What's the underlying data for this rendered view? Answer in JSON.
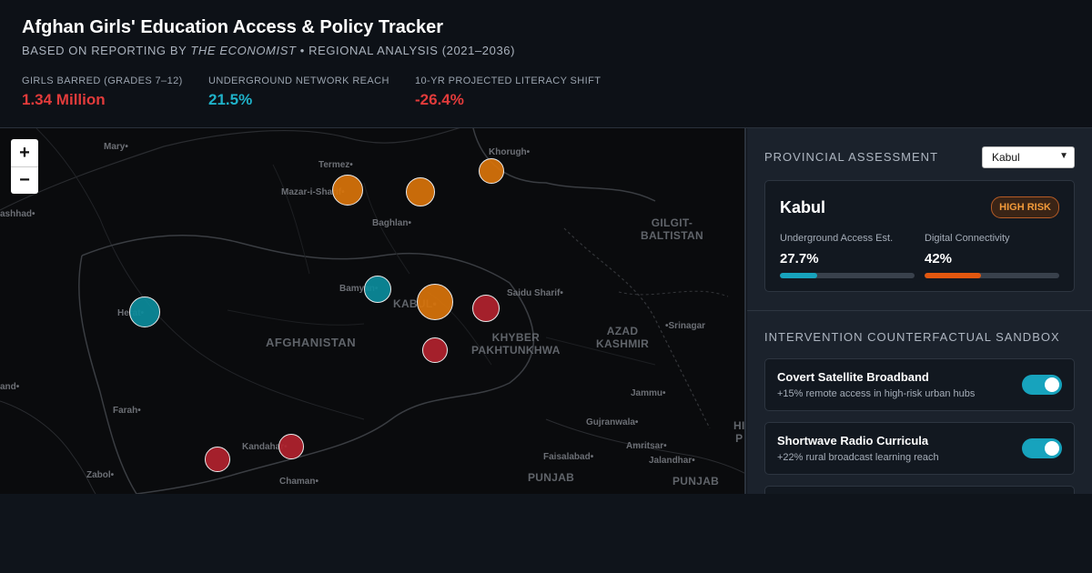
{
  "header": {
    "title": "Afghan Girls' Education Access & Policy Tracker",
    "subtitle_prefix": "BASED ON REPORTING BY ",
    "subtitle_source": "THE ECONOMIST",
    "subtitle_suffix": " • REGIONAL ANALYSIS (2021–2036)"
  },
  "stats": [
    {
      "label": "GIRLS BARRED (GRADES 7–12)",
      "value": "1.34 Million",
      "color": "#e23b3b"
    },
    {
      "label": "UNDERGROUND NETWORK REACH",
      "value": "21.5%",
      "color": "#1fb2c9"
    },
    {
      "label": "10-YR PROJECTED LITERACY SHIFT",
      "value": "-26.4%",
      "color": "#e23b3b"
    }
  ],
  "map": {
    "zoom_in": "+",
    "zoom_out": "−",
    "labels": {
      "mary": "Mary•",
      "termez": "Termez•",
      "khorugh": "Khorugh•",
      "mazar": "Mazar-i-Sharif•",
      "mashhad": "ashhad•",
      "baghlan": "Baghlan•",
      "gilgit": "GILGIT-\nBALTISTAN",
      "herat": "Herat•",
      "bamyan": "Bamyan•",
      "kabul": "KABUL•",
      "saidu": "Saidu Sharif•",
      "afghanistan": "AFGHANISTAN",
      "khyber": "KHYBER\nPAKHTUNKHWA",
      "azad": "AZAD\nKASHMIR",
      "srinagar": "•Srinagar",
      "and": "and•",
      "farah": "Farah•",
      "jammu": "Jammu•",
      "gujranwala": "Gujranwala•",
      "hi": "HI\nP",
      "amritsar": "Amritsar•",
      "jalandhar": "Jalandhar•",
      "kandahar": "Kandahar•",
      "faisalabad": "Faisalabad•",
      "zabol": "Zabol•",
      "chaman": "Chaman•",
      "punjab1": "PUNJAB",
      "punjab2": "PUNJAB"
    },
    "marker_colors": {
      "orange": "#d9740a",
      "teal": "#0c8c9c",
      "red": "#b2222e"
    }
  },
  "panel": {
    "assessment_title": "PROVINCIAL ASSESSMENT",
    "selected_province": "Kabul",
    "card": {
      "name": "Kabul",
      "risk": "HIGH RISK",
      "metrics": [
        {
          "label": "Underground Access Est.",
          "value": "27.7%",
          "fraction": 0.277,
          "color": "#17a3bd"
        },
        {
          "label": "Digital Connectivity",
          "value": "42%",
          "fraction": 0.42,
          "color": "#e2570f"
        }
      ]
    },
    "sandbox_title": "INTERVENTION COUNTERFACTUAL SANDBOX",
    "toggles": [
      {
        "title": "Covert Satellite Broadband",
        "desc": "+15% remote access in high-risk urban hubs",
        "on": true
      },
      {
        "title": "Shortwave Radio Curricula",
        "desc": "+22% rural broadcast learning reach",
        "on": true
      }
    ]
  }
}
